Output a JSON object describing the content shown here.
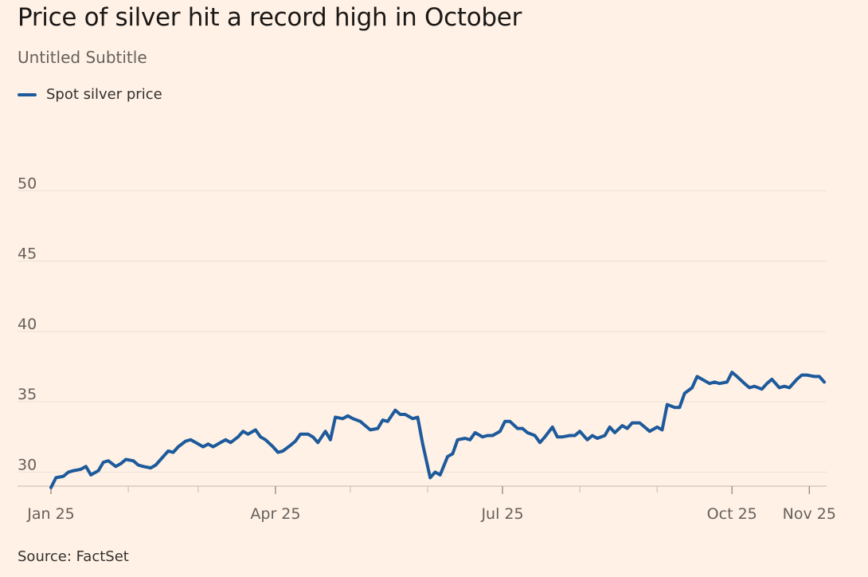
{
  "title": "Price of silver hit a record high in October",
  "subtitle": "Untitled Subtitle",
  "source": "Source: FactSet",
  "colors": {
    "background": "#fff1e5",
    "series": "#1d5a9b",
    "grid": "#efe3d7",
    "axis": "#cfc2b7"
  },
  "chart_data": {
    "type": "line",
    "title": "Price of silver hit a record high in October",
    "subtitle": "Untitled Subtitle",
    "xlabel": "",
    "ylabel": "",
    "x_range": [
      "2025-01-01",
      "2025-11-06"
    ],
    "ylim": [
      29,
      54.5
    ],
    "grid": "horizontal",
    "legend_position": "top-left",
    "y_ticks": [
      30,
      35,
      40,
      45,
      50
    ],
    "x_ticks": [
      {
        "label": "Jan 25",
        "date": "2025-01-01"
      },
      {
        "label": "Apr 25",
        "date": "2025-04-01"
      },
      {
        "label": "Jul 25",
        "date": "2025-07-01"
      },
      {
        "label": "Oct 25",
        "date": "2025-10-01"
      },
      {
        "label": "Nov 25",
        "date": "2025-11-01"
      }
    ],
    "minor_x_ticks": [
      "2025-02-01",
      "2025-03-01",
      "2025-05-01",
      "2025-06-01",
      "2025-08-01",
      "2025-09-01"
    ],
    "series": [
      {
        "name": "Spot silver price",
        "color": "#1d5a9b",
        "points": [
          [
            "2025-01-01",
            28.9
          ],
          [
            "2025-01-03",
            29.6
          ],
          [
            "2025-01-06",
            29.7
          ],
          [
            "2025-01-08",
            30.0
          ],
          [
            "2025-01-10",
            30.1
          ],
          [
            "2025-01-13",
            30.2
          ],
          [
            "2025-01-15",
            30.4
          ],
          [
            "2025-01-17",
            29.8
          ],
          [
            "2025-01-20",
            30.1
          ],
          [
            "2025-01-22",
            30.7
          ],
          [
            "2025-01-24",
            30.8
          ],
          [
            "2025-01-27",
            30.4
          ],
          [
            "2025-01-29",
            30.6
          ],
          [
            "2025-01-31",
            30.9
          ],
          [
            "2025-02-03",
            30.8
          ],
          [
            "2025-02-05",
            30.5
          ],
          [
            "2025-02-07",
            30.4
          ],
          [
            "2025-02-10",
            30.3
          ],
          [
            "2025-02-12",
            30.5
          ],
          [
            "2025-02-14",
            30.9
          ],
          [
            "2025-02-17",
            31.5
          ],
          [
            "2025-02-19",
            31.4
          ],
          [
            "2025-02-21",
            31.8
          ],
          [
            "2025-02-24",
            32.2
          ],
          [
            "2025-02-26",
            32.3
          ],
          [
            "2025-02-28",
            32.1
          ],
          [
            "2025-03-03",
            31.8
          ],
          [
            "2025-03-05",
            32.0
          ],
          [
            "2025-03-07",
            31.8
          ],
          [
            "2025-03-10",
            32.1
          ],
          [
            "2025-03-12",
            32.3
          ],
          [
            "2025-03-14",
            32.1
          ],
          [
            "2025-03-17",
            32.5
          ],
          [
            "2025-03-19",
            32.9
          ],
          [
            "2025-03-21",
            32.7
          ],
          [
            "2025-03-24",
            33.0
          ],
          [
            "2025-03-26",
            32.5
          ],
          [
            "2025-03-28",
            32.3
          ],
          [
            "2025-03-31",
            31.8
          ],
          [
            "2025-04-02",
            31.4
          ],
          [
            "2025-04-04",
            31.5
          ],
          [
            "2025-04-07",
            31.9
          ],
          [
            "2025-04-09",
            32.2
          ],
          [
            "2025-04-11",
            32.7
          ],
          [
            "2025-04-14",
            32.7
          ],
          [
            "2025-04-16",
            32.5
          ],
          [
            "2025-04-18",
            32.1
          ],
          [
            "2025-04-21",
            32.9
          ],
          [
            "2025-04-23",
            32.3
          ],
          [
            "2025-04-25",
            33.9
          ],
          [
            "2025-04-28",
            33.8
          ],
          [
            "2025-04-30",
            34.0
          ],
          [
            "2025-05-02",
            33.8
          ],
          [
            "2025-05-05",
            33.6
          ],
          [
            "2025-05-07",
            33.3
          ],
          [
            "2025-05-09",
            33.0
          ],
          [
            "2025-05-12",
            33.1
          ],
          [
            "2025-05-14",
            33.7
          ],
          [
            "2025-05-16",
            33.6
          ],
          [
            "2025-05-19",
            34.4
          ],
          [
            "2025-05-21",
            34.1
          ],
          [
            "2025-05-23",
            34.1
          ],
          [
            "2025-05-26",
            33.8
          ],
          [
            "2025-05-28",
            33.9
          ],
          [
            "2025-05-30",
            32.0
          ],
          [
            "2025-06-02",
            29.6
          ],
          [
            "2025-06-04",
            30.0
          ],
          [
            "2025-06-06",
            29.8
          ],
          [
            "2025-06-09",
            31.1
          ],
          [
            "2025-06-11",
            31.3
          ],
          [
            "2025-06-13",
            32.3
          ],
          [
            "2025-06-16",
            32.4
          ],
          [
            "2025-06-18",
            32.3
          ],
          [
            "2025-06-20",
            32.8
          ],
          [
            "2025-06-23",
            32.5
          ],
          [
            "2025-06-25",
            32.6
          ],
          [
            "2025-06-27",
            32.6
          ],
          [
            "2025-06-30",
            32.9
          ],
          [
            "2025-07-02",
            33.6
          ],
          [
            "2025-07-04",
            33.6
          ],
          [
            "2025-07-07",
            33.1
          ],
          [
            "2025-07-09",
            33.1
          ],
          [
            "2025-07-11",
            32.8
          ],
          [
            "2025-07-14",
            32.6
          ],
          [
            "2025-07-16",
            32.1
          ],
          [
            "2025-07-18",
            32.5
          ],
          [
            "2025-07-21",
            33.2
          ],
          [
            "2025-07-23",
            32.5
          ],
          [
            "2025-07-25",
            32.5
          ],
          [
            "2025-07-28",
            32.6
          ],
          [
            "2025-07-30",
            32.6
          ],
          [
            "2025-08-01",
            32.9
          ],
          [
            "2025-08-04",
            32.3
          ],
          [
            "2025-08-06",
            32.6
          ],
          [
            "2025-08-08",
            32.4
          ],
          [
            "2025-08-11",
            32.6
          ],
          [
            "2025-08-13",
            33.2
          ],
          [
            "2025-08-15",
            32.8
          ],
          [
            "2025-08-18",
            33.3
          ],
          [
            "2025-08-20",
            33.1
          ],
          [
            "2025-08-22",
            33.5
          ],
          [
            "2025-08-25",
            33.5
          ],
          [
            "2025-08-27",
            33.2
          ],
          [
            "2025-08-29",
            32.9
          ],
          [
            "2025-09-01",
            33.2
          ],
          [
            "2025-09-03",
            33.0
          ],
          [
            "2025-09-05",
            34.8
          ],
          [
            "2025-09-08",
            34.6
          ],
          [
            "2025-09-10",
            34.6
          ],
          [
            "2025-09-12",
            35.6
          ],
          [
            "2025-09-15",
            36.0
          ],
          [
            "2025-09-17",
            36.8
          ],
          [
            "2025-09-19",
            36.6
          ],
          [
            "2025-09-22",
            36.3
          ],
          [
            "2025-09-24",
            36.4
          ],
          [
            "2025-09-26",
            36.3
          ],
          [
            "2025-09-29",
            36.4
          ],
          [
            "2025-10-01",
            37.1
          ],
          [
            "2025-10-03",
            36.8
          ],
          [
            "2025-10-06",
            36.3
          ],
          [
            "2025-10-08",
            36.0
          ],
          [
            "2025-10-10",
            36.1
          ],
          [
            "2025-10-13",
            35.9
          ],
          [
            "2025-10-15",
            36.3
          ],
          [
            "2025-10-17",
            36.6
          ],
          [
            "2025-10-20",
            36.0
          ],
          [
            "2025-10-22",
            36.1
          ],
          [
            "2025-10-24",
            36.0
          ],
          [
            "2025-10-27",
            36.6
          ],
          [
            "2025-10-29",
            36.9
          ],
          [
            "2025-10-31",
            36.9
          ],
          [
            "2025-11-03",
            36.8
          ],
          [
            "2025-11-05",
            36.8
          ],
          [
            "2025-11-07",
            36.4
          ]
        ]
      }
    ]
  }
}
